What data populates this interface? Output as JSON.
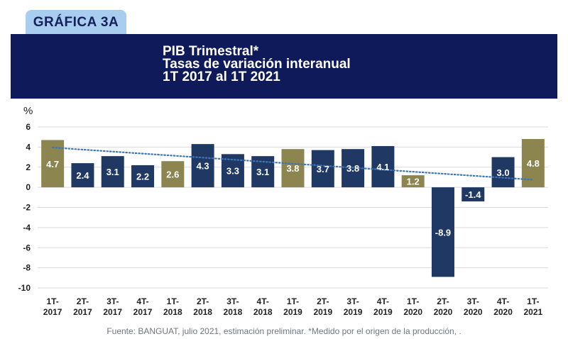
{
  "badge": "GRÁFICA  3A",
  "header": {
    "title_line1": "PIB Trimestral*",
    "title_line2": "Tasas de variación interanual",
    "title_line3": "1T 2017 al 1T 2021"
  },
  "source": "Fuente: BANGUAT, julio 2021, estimación preliminar. *Medido por el origen de la producción, .",
  "colors": {
    "navy": "#1f3864",
    "gold": "#8d8550",
    "trend": "#3f74b6",
    "grid": "#d9d9d9",
    "header_bg": "#0f1a5a"
  },
  "chart_data": {
    "type": "bar",
    "ylabel": "%",
    "ylim": [
      -10,
      6
    ],
    "yticks": [
      6,
      4,
      2,
      0,
      -2,
      -4,
      -6,
      -8,
      -10
    ],
    "grid": true,
    "categories": [
      [
        "1T-",
        "2017"
      ],
      [
        "2T-",
        "2017"
      ],
      [
        "3T-",
        "2017"
      ],
      [
        "4T-",
        "2017"
      ],
      [
        "1T-",
        "2018"
      ],
      [
        "2T-",
        "2018"
      ],
      [
        "3T-",
        "2018"
      ],
      [
        "4T-",
        "2018"
      ],
      [
        "1T-",
        "2019"
      ],
      [
        "2T-",
        "2019"
      ],
      [
        "3T-",
        "2019"
      ],
      [
        "4T-",
        "2019"
      ],
      [
        "1T-",
        "2020"
      ],
      [
        "2T-",
        "2020"
      ],
      [
        "3T-",
        "2020"
      ],
      [
        "4T-",
        "2020"
      ],
      [
        "1T-",
        "2021"
      ]
    ],
    "values": [
      4.7,
      2.4,
      3.1,
      2.2,
      2.6,
      4.3,
      3.3,
      3.1,
      3.8,
      3.7,
      3.8,
      4.1,
      1.2,
      -8.9,
      -1.4,
      3.0,
      4.8
    ],
    "labels": [
      "4.7",
      "2.4",
      "3.1",
      "2.2",
      "2.6",
      "4.3",
      "3.3",
      "3.1",
      "3.8",
      "3.7",
      "3.8",
      "4.1",
      "1.2",
      "-8.9",
      "-1.4",
      "3.0",
      "4.8"
    ],
    "bar_colors": [
      "gold",
      "navy",
      "navy",
      "navy",
      "gold",
      "navy",
      "navy",
      "navy",
      "gold",
      "navy",
      "navy",
      "navy",
      "gold",
      "navy",
      "navy",
      "navy",
      "gold"
    ],
    "trendline": {
      "style": "dotted",
      "start": 3.95,
      "end": 0.75
    }
  }
}
